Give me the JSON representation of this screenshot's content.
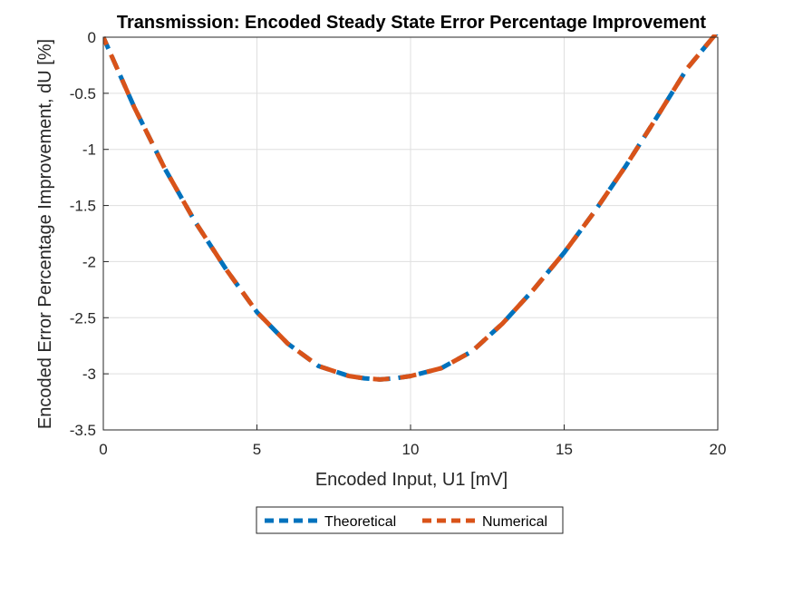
{
  "chart_data": {
    "type": "line",
    "title": "Transmission: Encoded Steady State Error Percentage Improvement",
    "xlabel": "Encoded Input, U1 [mV]",
    "ylabel": "Encoded Error Percentage Improvement, dU [%]",
    "xlim": [
      0,
      20
    ],
    "ylim": [
      -3.5,
      0
    ],
    "xticks": [
      0,
      5,
      10,
      15,
      20
    ],
    "xtick_labels": [
      "0",
      "5",
      "10",
      "15",
      "20"
    ],
    "yticks": [
      0,
      -0.5,
      -1,
      -1.5,
      -2,
      -2.5,
      -3,
      -3.5
    ],
    "ytick_labels": [
      "0",
      "-0.5",
      "-1",
      "-1.5",
      "-2",
      "-2.5",
      "-3",
      "-3.5"
    ],
    "grid": true,
    "legend_position": "bottom-outside",
    "x": [
      0,
      1,
      2,
      3,
      4,
      5,
      6,
      7,
      8,
      8.5,
      9,
      9.5,
      10,
      11,
      12,
      13,
      14,
      15,
      16,
      17,
      18,
      19,
      20
    ],
    "series": [
      {
        "name": "Theoretical",
        "color": "#0072BD",
        "style": "dashed",
        "values": [
          0,
          -0.62,
          -1.17,
          -1.65,
          -2.07,
          -2.45,
          -2.73,
          -2.93,
          -3.02,
          -3.04,
          -3.05,
          -3.04,
          -3.02,
          -2.95,
          -2.8,
          -2.55,
          -2.25,
          -1.92,
          -1.55,
          -1.15,
          -0.72,
          -0.28,
          0.05
        ]
      },
      {
        "name": "Numerical",
        "color": "#D95319",
        "style": "dashed",
        "values": [
          0,
          -0.62,
          -1.17,
          -1.65,
          -2.07,
          -2.45,
          -2.73,
          -2.93,
          -3.02,
          -3.04,
          -3.05,
          -3.04,
          -3.02,
          -2.95,
          -2.8,
          -2.55,
          -2.25,
          -1.92,
          -1.55,
          -1.15,
          -0.72,
          -0.28,
          0.05
        ]
      }
    ]
  }
}
